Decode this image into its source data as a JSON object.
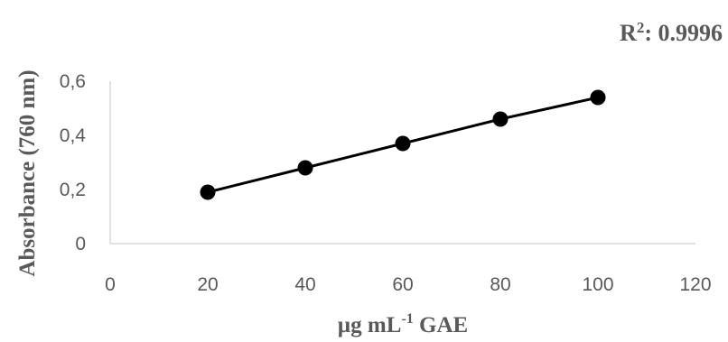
{
  "chart_data": {
    "type": "line",
    "x": [
      20,
      40,
      60,
      80,
      100
    ],
    "series": [
      {
        "values": [
          0.19,
          0.28,
          0.37,
          0.46,
          0.54
        ]
      }
    ],
    "xlim": [
      0,
      120
    ],
    "ylim": [
      0,
      0.6
    ],
    "xticks": [
      0,
      20,
      40,
      60,
      80,
      100,
      120
    ],
    "yticks": [
      0,
      0.2,
      0.4,
      0.6
    ],
    "xtick_labels": [
      "0",
      "20",
      "40",
      "60",
      "80",
      "100",
      "120"
    ],
    "ytick_labels": [
      "0",
      "0,2",
      "0,4",
      "0,6"
    ],
    "xlabel_main": "µg mL",
    "xlabel_sup": "-1",
    "xlabel_tail": " GAE",
    "ylabel": "Absorbance (760 nm)",
    "annotation_main": "R",
    "annotation_sup": "2",
    "annotation_tail": ": 0.9996",
    "grid": false,
    "legend": "none",
    "colors": {
      "line": "#000000",
      "marker": "#000000",
      "axis": "#d9d9d9",
      "text": "#595959"
    }
  }
}
